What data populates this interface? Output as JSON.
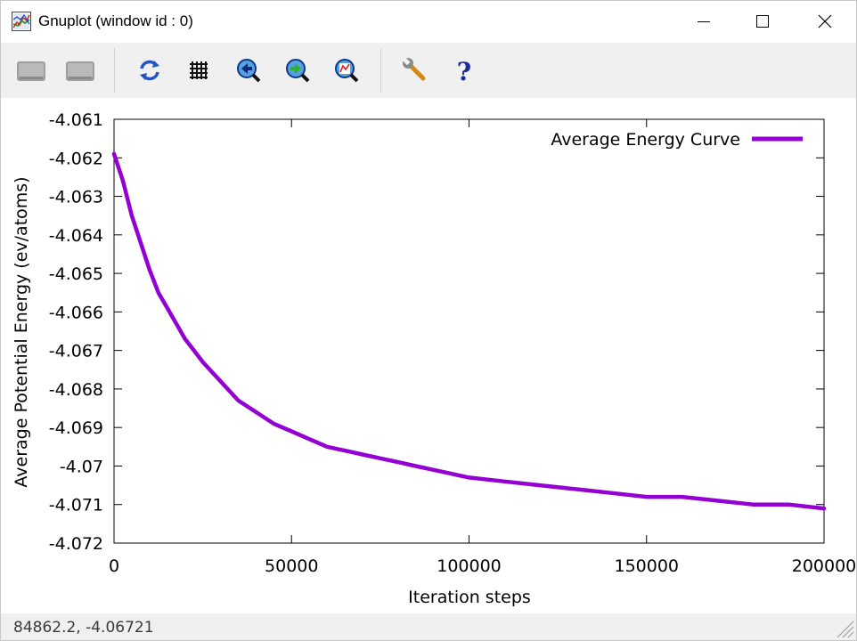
{
  "window": {
    "title": "Gnuplot (window id : 0)",
    "icons": {
      "app": "gnuplot-app-icon",
      "minimize": "minimize-icon",
      "maximize": "maximize-icon",
      "close": "close-icon"
    }
  },
  "toolbar": {
    "items": [
      {
        "name": "copy-to-clipboard-button",
        "icon": "clipboard-icon"
      },
      {
        "name": "print-button",
        "icon": "printer-icon"
      },
      {
        "name": "replot-button",
        "icon": "refresh-icon"
      },
      {
        "name": "toggle-grid-button",
        "icon": "grid-icon"
      },
      {
        "name": "previous-zoom-button",
        "icon": "zoom-previous-icon"
      },
      {
        "name": "next-zoom-button",
        "icon": "zoom-next-icon"
      },
      {
        "name": "autoscale-button",
        "icon": "autoscale-icon"
      },
      {
        "name": "options-button",
        "icon": "wrench-icon"
      },
      {
        "name": "help-button",
        "icon": "help-icon"
      }
    ]
  },
  "chart_data": {
    "type": "line",
    "title": "",
    "xlabel": "Iteration steps",
    "ylabel": "Average Potential Energy (ev/atoms)",
    "xlim": [
      0,
      200000
    ],
    "ylim": [
      -4.072,
      -4.061
    ],
    "x_ticks": [
      "0",
      "50000",
      "100000",
      "150000",
      "200000"
    ],
    "x_tick_values": [
      0,
      50000,
      100000,
      150000,
      200000
    ],
    "y_ticks": [
      "-4.061",
      "-4.062",
      "-4.063",
      "-4.064",
      "-4.065",
      "-4.066",
      "-4.067",
      "-4.068",
      "-4.069",
      "-4.07",
      "-4.071",
      "-4.072"
    ],
    "y_tick_values": [
      -4.061,
      -4.062,
      -4.063,
      -4.064,
      -4.065,
      -4.066,
      -4.067,
      -4.068,
      -4.069,
      -4.07,
      -4.071,
      -4.072
    ],
    "grid": false,
    "legend_position": "top-right",
    "series": [
      {
        "name": "Average Energy Curve",
        "color": "#9400d3",
        "x": [
          0,
          2500,
          5000,
          7500,
          10000,
          12500,
          15000,
          17500,
          20000,
          22500,
          25000,
          30000,
          35000,
          40000,
          45000,
          50000,
          55000,
          60000,
          65000,
          70000,
          75000,
          80000,
          85000,
          90000,
          95000,
          100000,
          110000,
          120000,
          130000,
          140000,
          150000,
          160000,
          170000,
          180000,
          190000,
          200000
        ],
        "y": [
          -4.0619,
          -4.0626,
          -4.0635,
          -4.0642,
          -4.0649,
          -4.0655,
          -4.0659,
          -4.0663,
          -4.0667,
          -4.067,
          -4.0673,
          -4.0678,
          -4.0683,
          -4.0686,
          -4.0689,
          -4.0691,
          -4.0693,
          -4.0695,
          -4.0696,
          -4.0697,
          -4.0698,
          -4.0699,
          -4.07,
          -4.0701,
          -4.0702,
          -4.0703,
          -4.0704,
          -4.0705,
          -4.0706,
          -4.0707,
          -4.0708,
          -4.0708,
          -4.0709,
          -4.071,
          -4.071,
          -4.0711
        ]
      }
    ]
  },
  "status": {
    "coordinates": "84862.2, -4.06721"
  }
}
